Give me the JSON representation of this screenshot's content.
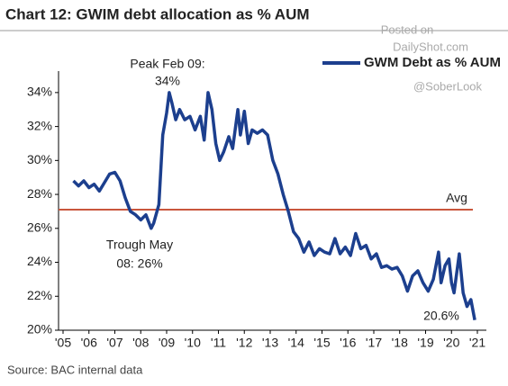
{
  "chart_data": {
    "type": "line",
    "title": "Chart 12: GWIM debt allocation as % AUM",
    "source": "Source: BAC internal data",
    "watermark": [
      "Posted on",
      "DailyShot.com",
      "@SoberLook"
    ],
    "annotations": {
      "peak": [
        "Peak Feb 09:",
        "34%"
      ],
      "trough": [
        "Trough May",
        "08: 26%"
      ],
      "last": "20.6%"
    },
    "average": {
      "label": "Avg",
      "value": 27.1,
      "color": "#c9563c"
    },
    "legend": "upper right",
    "xlim": [
      2005,
      2021
    ],
    "xticks": [
      {
        "value": 2005,
        "label": "'05"
      },
      {
        "value": 2006,
        "label": "'06"
      },
      {
        "value": 2007,
        "label": "'07"
      },
      {
        "value": 2008,
        "label": "'08"
      },
      {
        "value": 2009,
        "label": "'09"
      },
      {
        "value": 2010,
        "label": "'10"
      },
      {
        "value": 2011,
        "label": "'11"
      },
      {
        "value": 2012,
        "label": "'12"
      },
      {
        "value": 2013,
        "label": "'13"
      },
      {
        "value": 2014,
        "label": "'14"
      },
      {
        "value": 2015,
        "label": "'15"
      },
      {
        "value": 2016,
        "label": "'16"
      },
      {
        "value": 2017,
        "label": "'17"
      },
      {
        "value": 2018,
        "label": "'18"
      },
      {
        "value": 2019,
        "label": "'19"
      },
      {
        "value": 2020,
        "label": "'20"
      },
      {
        "value": 2021,
        "label": "'21"
      }
    ],
    "ylim": [
      20,
      35
    ],
    "yticks": [
      {
        "value": 20,
        "label": "20%"
      },
      {
        "value": 22,
        "label": "22%"
      },
      {
        "value": 24,
        "label": "24%"
      },
      {
        "value": 26,
        "label": "26%"
      },
      {
        "value": 28,
        "label": "28%"
      },
      {
        "value": 30,
        "label": "30%"
      },
      {
        "value": 32,
        "label": "32%"
      },
      {
        "value": 34,
        "label": "34%"
      }
    ],
    "x": [
      2005.4,
      2005.6,
      2005.8,
      2006.0,
      2006.2,
      2006.4,
      2006.6,
      2006.8,
      2007.0,
      2007.2,
      2007.4,
      2007.6,
      2007.8,
      2008.0,
      2008.2,
      2008.4,
      2008.5,
      2008.7,
      2008.85,
      2009.0,
      2009.1,
      2009.2,
      2009.35,
      2009.5,
      2009.7,
      2009.9,
      2010.1,
      2010.3,
      2010.45,
      2010.6,
      2010.75,
      2010.9,
      2011.05,
      2011.2,
      2011.4,
      2011.55,
      2011.75,
      2011.85,
      2012.0,
      2012.15,
      2012.3,
      2012.5,
      2012.7,
      2012.9,
      2013.1,
      2013.3,
      2013.5,
      2013.7,
      2013.9,
      2014.1,
      2014.3,
      2014.5,
      2014.7,
      2014.9,
      2015.1,
      2015.3,
      2015.5,
      2015.7,
      2015.9,
      2016.1,
      2016.3,
      2016.5,
      2016.7,
      2016.9,
      2017.1,
      2017.3,
      2017.5,
      2017.7,
      2017.9,
      2018.1,
      2018.3,
      2018.5,
      2018.7,
      2018.9,
      2019.1,
      2019.3,
      2019.5,
      2019.6,
      2019.75,
      2019.9,
      2020.0,
      2020.1,
      2020.3,
      2020.45,
      2020.6,
      2020.75,
      2020.9
    ],
    "series": [
      {
        "name": "GWM Debt as % AUM",
        "color": "#1c3f8e",
        "values": [
          28.8,
          28.5,
          28.8,
          28.4,
          28.6,
          28.2,
          28.7,
          29.2,
          29.3,
          28.8,
          27.8,
          27.0,
          26.8,
          26.5,
          26.8,
          26.0,
          26.3,
          27.4,
          31.5,
          32.8,
          34.0,
          33.4,
          32.4,
          33.0,
          32.4,
          32.6,
          31.8,
          32.6,
          31.2,
          34.0,
          33.0,
          31.0,
          30.0,
          30.5,
          31.4,
          30.7,
          33.0,
          31.5,
          32.9,
          31.0,
          31.8,
          31.6,
          31.8,
          31.5,
          30.0,
          29.2,
          28.0,
          27.0,
          25.8,
          25.4,
          24.6,
          25.2,
          24.4,
          24.8,
          24.6,
          24.5,
          25.4,
          24.5,
          24.9,
          24.4,
          25.7,
          24.8,
          25.0,
          24.2,
          24.5,
          23.7,
          23.8,
          23.6,
          23.7,
          23.2,
          22.3,
          23.2,
          23.5,
          22.8,
          22.3,
          23.0,
          24.6,
          22.8,
          23.8,
          24.2,
          22.8,
          22.2,
          24.5,
          22.2,
          21.4,
          21.8,
          20.6
        ]
      }
    ]
  }
}
